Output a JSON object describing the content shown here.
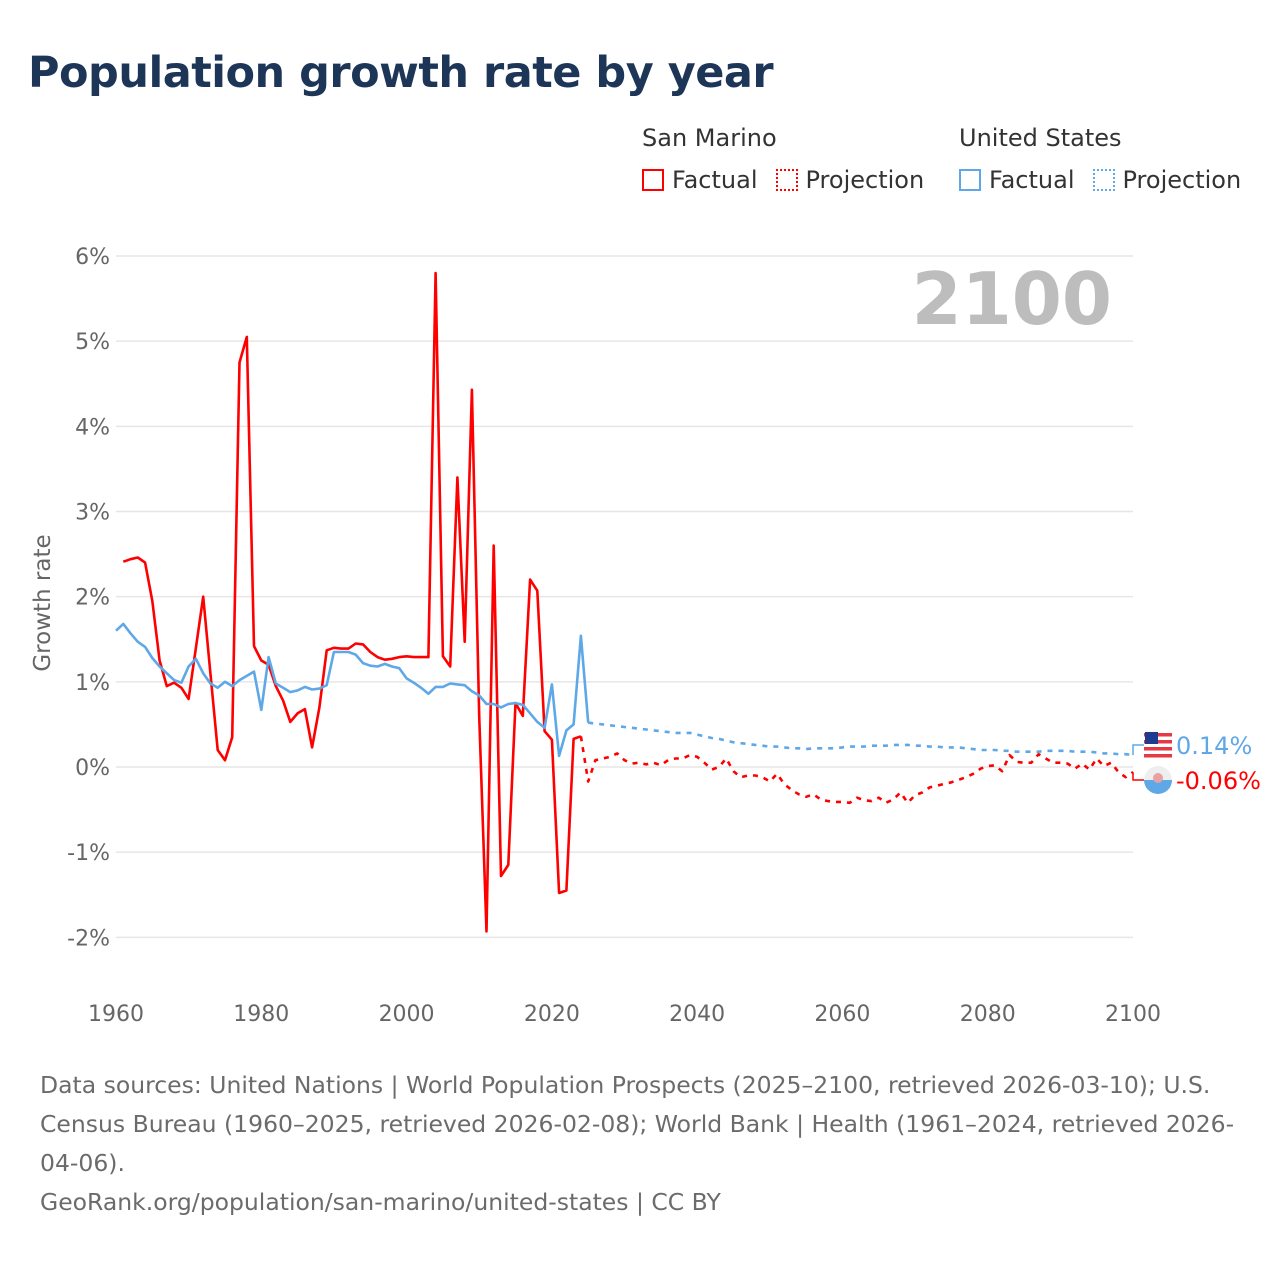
{
  "title": "Population growth rate by year",
  "legend": {
    "groups": [
      {
        "name": "San Marino",
        "factual": "Factual",
        "projection": "Projection",
        "color": "#ff0000"
      },
      {
        "name": "United States",
        "factual": "Factual",
        "projection": "Projection",
        "color": "#5fa8e8"
      }
    ]
  },
  "year_label": "2100",
  "footer": {
    "sources": "Data sources: United Nations | World Population Prospects (2025–2100, retrieved 2026-03-10); U.S. Census Bureau (1960–2025, retrieved 2026-02-08); World Bank | Health (1961–2024, retrieved 2026-04-06).",
    "link": "GeoRank.org/population/san-marino/united-states | CC BY"
  },
  "chart_data": {
    "type": "line",
    "title": "Population growth rate by year",
    "xlabel": "",
    "ylabel": "Growth rate",
    "xlim": [
      1960,
      2100
    ],
    "ylim": [
      -2,
      6
    ],
    "x_ticks": [
      "1960",
      "1980",
      "2000",
      "2020",
      "2040",
      "2060",
      "2080",
      "2100"
    ],
    "y_ticks": [
      "6%",
      "5%",
      "4%",
      "3%",
      "2%",
      "1%",
      "0%",
      "-1%",
      "-2%"
    ],
    "grid": true,
    "end_labels": {
      "United States": "0.14%",
      "San Marino": "-0.06%"
    },
    "series": [
      {
        "name": "San Marino",
        "kind": "factual",
        "color": "#ff0000",
        "x_start": 1961,
        "values": [
          2.41,
          2.44,
          2.46,
          2.4,
          1.95,
          1.25,
          0.95,
          0.99,
          0.93,
          0.8,
          1.4,
          2.0,
          1.1,
          0.2,
          0.08,
          0.35,
          4.75,
          5.05,
          1.42,
          1.25,
          1.2,
          0.95,
          0.78,
          0.53,
          0.63,
          0.68,
          0.23,
          0.7,
          1.37,
          1.4,
          1.39,
          1.39,
          1.45,
          1.44,
          1.35,
          1.29,
          1.26,
          1.27,
          1.29,
          1.3,
          1.29,
          1.29,
          1.29,
          5.8,
          1.3,
          1.18,
          3.4,
          1.47,
          4.43,
          0.6,
          -1.93,
          2.6,
          -1.28,
          -1.15,
          0.75,
          0.6,
          2.2,
          2.07,
          0.42,
          0.32,
          -1.48,
          -1.45,
          0.33,
          0.36
        ]
      },
      {
        "name": "San Marino",
        "kind": "projection",
        "color": "#ff0000",
        "x_start": 2024,
        "values": [
          0.36,
          -0.17,
          0.08,
          0.1,
          0.12,
          0.16,
          0.08,
          0.04,
          0.05,
          0.03,
          0.05,
          0.02,
          0.08,
          0.1,
          0.1,
          0.14,
          0.12,
          0.05,
          -0.03,
          0.0,
          0.1,
          -0.05,
          -0.12,
          -0.1,
          -0.1,
          -0.12,
          -0.17,
          -0.08,
          -0.2,
          -0.27,
          -0.32,
          -0.35,
          -0.32,
          -0.38,
          -0.4,
          -0.41,
          -0.41,
          -0.42,
          -0.36,
          -0.39,
          -0.4,
          -0.36,
          -0.42,
          -0.38,
          -0.3,
          -0.42,
          -0.33,
          -0.3,
          -0.24,
          -0.22,
          -0.2,
          -0.18,
          -0.15,
          -0.12,
          -0.08,
          -0.02,
          0.01,
          0.02,
          -0.05,
          0.14,
          0.06,
          0.05,
          0.05,
          0.15,
          0.1,
          0.05,
          0.05,
          0.04,
          -0.02,
          0.04,
          -0.03,
          0.1,
          0.01,
          0.05,
          -0.06,
          -0.12,
          -0.06
        ]
      },
      {
        "name": "United States",
        "kind": "factual",
        "color": "#5fa8e8",
        "x_start": 1960,
        "values": [
          1.6,
          1.68,
          1.57,
          1.47,
          1.41,
          1.28,
          1.18,
          1.1,
          1.02,
          0.99,
          1.18,
          1.27,
          1.1,
          0.98,
          0.93,
          1.0,
          0.95,
          1.02,
          1.07,
          1.12,
          0.67,
          1.29,
          0.98,
          0.93,
          0.88,
          0.9,
          0.94,
          0.91,
          0.92,
          0.96,
          1.35,
          1.35,
          1.35,
          1.32,
          1.22,
          1.19,
          1.18,
          1.21,
          1.18,
          1.16,
          1.04,
          0.99,
          0.93,
          0.86,
          0.94,
          0.94,
          0.98,
          0.97,
          0.96,
          0.89,
          0.84,
          0.74,
          0.74,
          0.7,
          0.74,
          0.75,
          0.73,
          0.63,
          0.53,
          0.46,
          0.97,
          0.13,
          0.43,
          0.5,
          1.54,
          0.52
        ]
      },
      {
        "name": "United States",
        "kind": "projection",
        "color": "#5fa8e8",
        "x_start": 2025,
        "values": [
          0.52,
          0.51,
          0.5,
          0.49,
          0.48,
          0.47,
          0.46,
          0.45,
          0.44,
          0.43,
          0.42,
          0.41,
          0.4,
          0.4,
          0.4,
          0.38,
          0.36,
          0.34,
          0.33,
          0.31,
          0.29,
          0.28,
          0.27,
          0.26,
          0.25,
          0.24,
          0.24,
          0.23,
          0.22,
          0.22,
          0.21,
          0.22,
          0.22,
          0.22,
          0.22,
          0.23,
          0.24,
          0.24,
          0.24,
          0.25,
          0.25,
          0.25,
          0.26,
          0.26,
          0.26,
          0.25,
          0.25,
          0.24,
          0.24,
          0.23,
          0.23,
          0.23,
          0.22,
          0.21,
          0.2,
          0.2,
          0.2,
          0.19,
          0.19,
          0.18,
          0.18,
          0.18,
          0.18,
          0.19,
          0.19,
          0.19,
          0.19,
          0.18,
          0.18,
          0.18,
          0.17,
          0.16,
          0.16,
          0.15,
          0.15,
          0.14
        ]
      }
    ]
  }
}
